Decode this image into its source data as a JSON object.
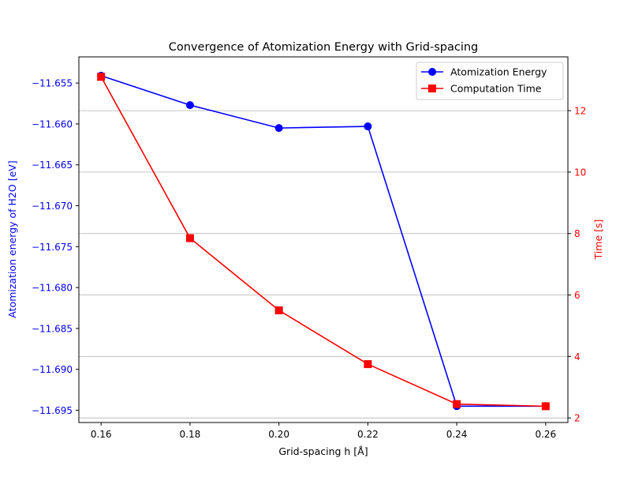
{
  "chart_data": {
    "type": "line",
    "title": "Convergence of Atomization Energy with Grid-spacing",
    "xlabel": "Grid-spacing h [Å]",
    "ylabel_left": "Atomization energy of H2O [eV]",
    "ylabel_right": "Time [s]",
    "xlim": [
      0.155,
      0.265
    ],
    "ylim_left": [
      -11.6965,
      -11.6518
    ],
    "ylim_right": [
      1.85,
      13.75
    ],
    "x_ticks": [
      "0.16",
      "0.18",
      "0.20",
      "0.22",
      "0.24",
      "0.26"
    ],
    "y_left_ticks": [
      "−11.655",
      "−11.660",
      "−11.665",
      "−11.670",
      "−11.675",
      "−11.680",
      "−11.685",
      "−11.690",
      "−11.695"
    ],
    "y_right_ticks": [
      "2",
      "4",
      "6",
      "8",
      "10",
      "12"
    ],
    "grid": "horizontal lines at right-axis ticks",
    "legend_position": "top-right",
    "x": [
      0.16,
      0.18,
      0.2,
      0.22,
      0.24,
      0.26
    ],
    "series": [
      {
        "name": "Atomization Energy",
        "axis": "left",
        "color": "#0000ff",
        "marker": "circle",
        "values": [
          -11.6541,
          -11.6577,
          -11.6605,
          -11.6603,
          -11.6945,
          -11.6945
        ]
      },
      {
        "name": "Computation Time",
        "axis": "right",
        "color": "#ff0000",
        "marker": "square",
        "values": [
          13.1,
          7.85,
          5.5,
          3.75,
          2.45,
          2.38
        ]
      }
    ]
  }
}
